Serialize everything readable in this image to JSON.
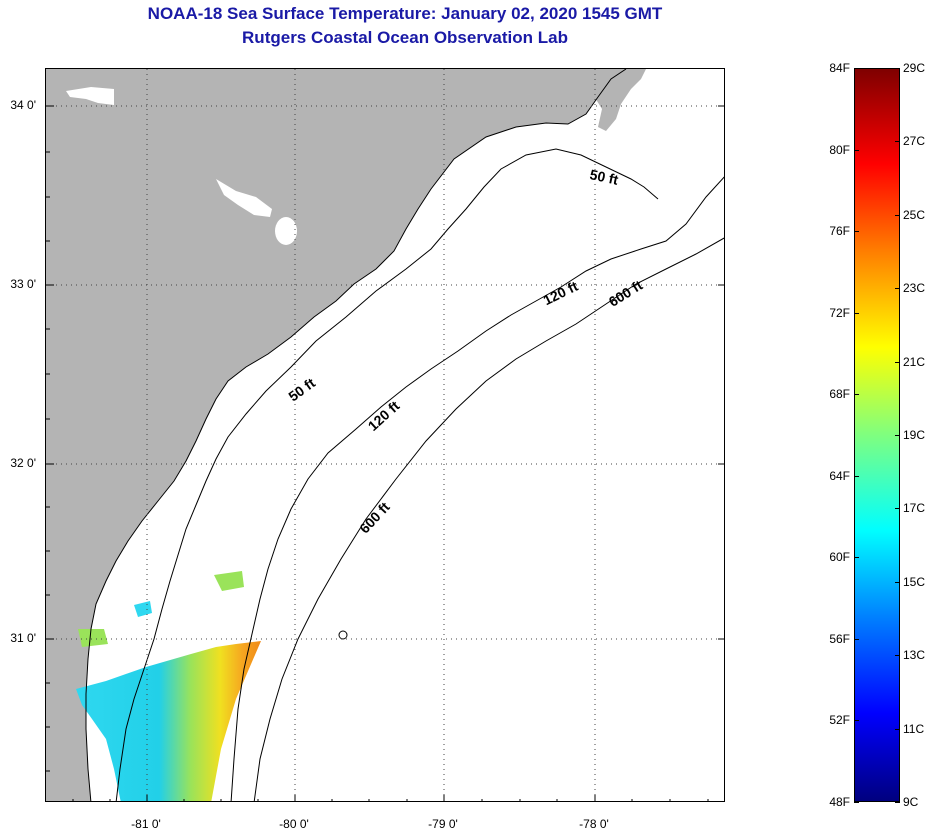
{
  "title": {
    "line1": "NOAA-18 Sea Surface Temperature:  January 02, 2020 1545 GMT",
    "line2": "Rutgers Coastal Ocean Observation Lab"
  },
  "map": {
    "lat_labels": [
      "34 0'",
      "33 0'",
      "32 0'",
      "31 0'"
    ],
    "lon_labels": [
      "-81 0'",
      "-80 0'",
      "-79 0'",
      "-78 0'"
    ],
    "contour_labels": [
      "50 ft",
      "50 ft",
      "120 ft",
      "120 ft",
      "600 ft",
      "600 ft"
    ],
    "colors": {
      "land": "#b4b4b4",
      "ocean_no_data": "#ffffff",
      "coastline": "#000000",
      "title": "#1a1aa6"
    }
  },
  "colorbar": {
    "fahrenheit_labels": [
      "84F",
      "80F",
      "76F",
      "72F",
      "68F",
      "64F",
      "60F",
      "56F",
      "52F",
      "48F"
    ],
    "celsius_labels": [
      "29C",
      "27C",
      "25C",
      "23C",
      "21C",
      "19C",
      "17C",
      "15C",
      "13C",
      "11C",
      "9C"
    ],
    "range_f": [
      48,
      84
    ],
    "range_c": [
      9,
      29
    ],
    "colormap": "jet"
  }
}
